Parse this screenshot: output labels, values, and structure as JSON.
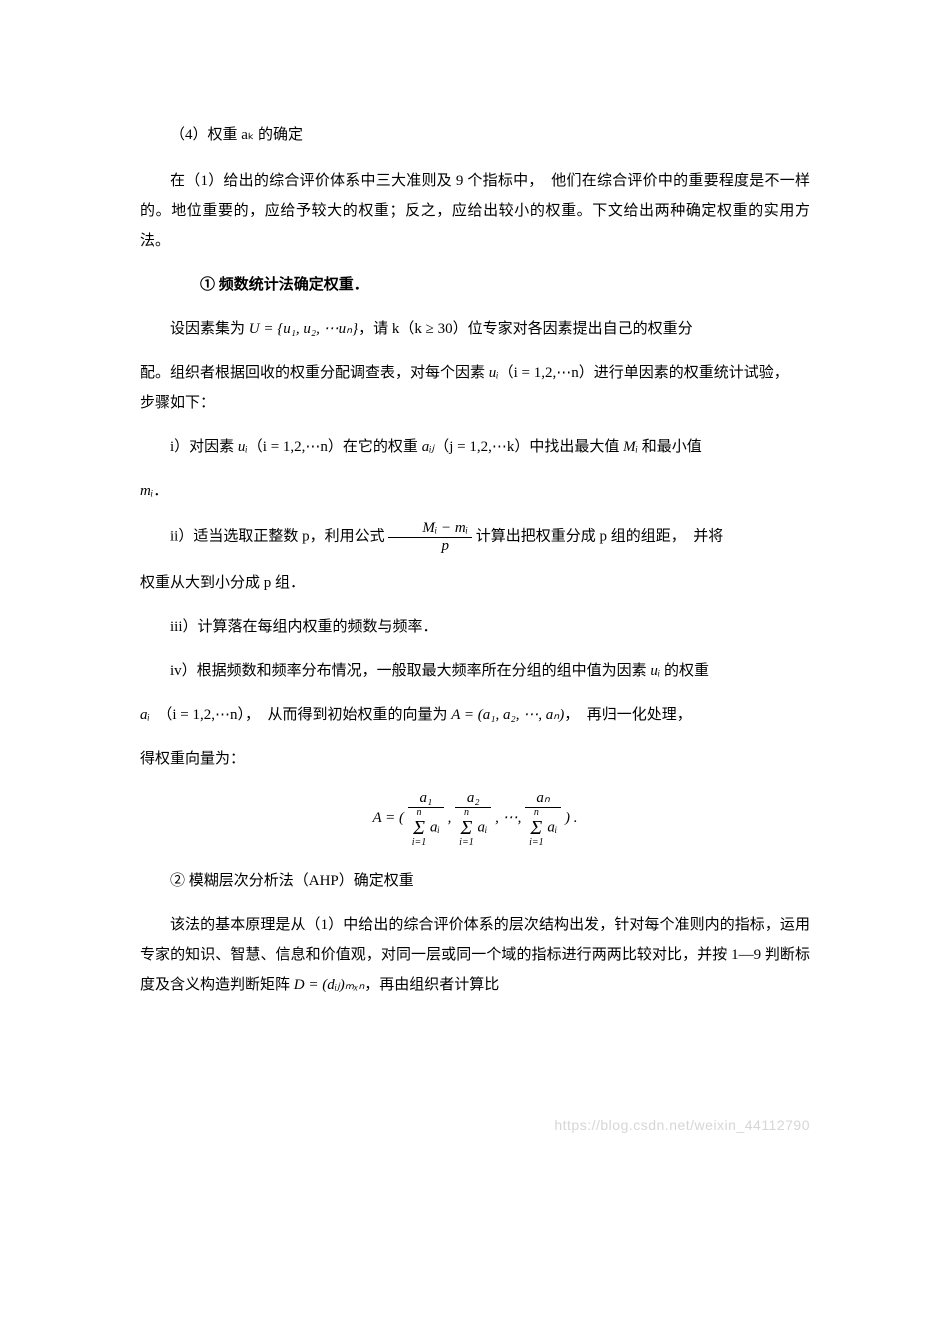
{
  "heading4": "（4）权重 aₖ 的确定",
  "p1": "在（1）给出的综合评价体系中三大准则及 9 个指标中，　他们在综合评价中的重要程度是不一样的。地位重要的，应给予较大的权重；反之，应给出较小的权重。下文给出两种确定权重的实用方法。",
  "method1_title": "① 频数统计法确定权重．",
  "p2_a": "设因素集为 ",
  "p2_b": "，请 k（k ≥ 30）位专家对各因素提出自己的权重分",
  "p2_c": "配。组织者根据回收的权重分配调查表，对每个因素 ",
  "p2_d": "（i = 1,2,⋯n）进行单因素的权重统计试验，　步骤如下：",
  "step_i_a": "i）对因素 ",
  "step_i_b": "（i = 1,2,⋯n）在它的权重 ",
  "step_i_c": "（j = 1,2,⋯k）中找出最大值 ",
  "step_i_d": " 和最小值",
  "step_i_e": "．",
  "step_ii_a": "ii）适当选取正整数 p，利用公式 ",
  "step_ii_b": " 计算出把权重分成 p 组的组距，　并将",
  "step_ii_c": "权重从大到小分成 p 组．",
  "step_iii": "iii）计算落在每组内权重的频数与频率．",
  "step_iv_a": "iv）根据频数和频率分布情况，一般取最大频率所在分组的组中值为因素 ",
  "step_iv_b": " 的权重",
  "step_iv_c": "（i = 1,2,⋯n），　从而得到初始权重的向量为 ",
  "step_iv_d": "，　再归一化处理，",
  "step_iv_e": "得权重向量为：",
  "method2_title": "② 模糊层次分析法（AHP）确定权重",
  "p3_a": "该法的基本原理是从（1）中给出的综合评价体系的层次结构出发，针对每个准则内的指标，运用专家的知识、智慧、信息和价值观，对同一层或同一个域的指标进行两两比较对比，并按 1—9 判断标度及含义构造判断矩阵 ",
  "p3_b": "，再由组织者计算比",
  "watermark": "https://blog.csdn.net/weixin_44112790",
  "math_set": "U = {u₁, u₂, ⋯uₙ}",
  "math_ui": "uᵢ",
  "math_aij": "aᵢⱼ",
  "math_Mi": "Mᵢ",
  "math_mi": "mᵢ",
  "math_ai": "aᵢ",
  "math_A": "A = (a₁, a₂, ⋯, aₙ)",
  "math_D": "D = (dᵢⱼ)ₘₓₙ",
  "formula_frac_num": "Mᵢ − mᵢ",
  "formula_frac_den": "p",
  "big_formula_prefix": "A = (",
  "big_formula_sep": ", ",
  "big_formula_dots": "⋯,",
  "big_formula_suffix": ") .",
  "a1": "a₁",
  "a2": "a₂",
  "an": "aₙ",
  "sum_top": "n",
  "sum_mid": "Σ",
  "sum_bot": "i=1",
  "sum_term": "aᵢ"
}
